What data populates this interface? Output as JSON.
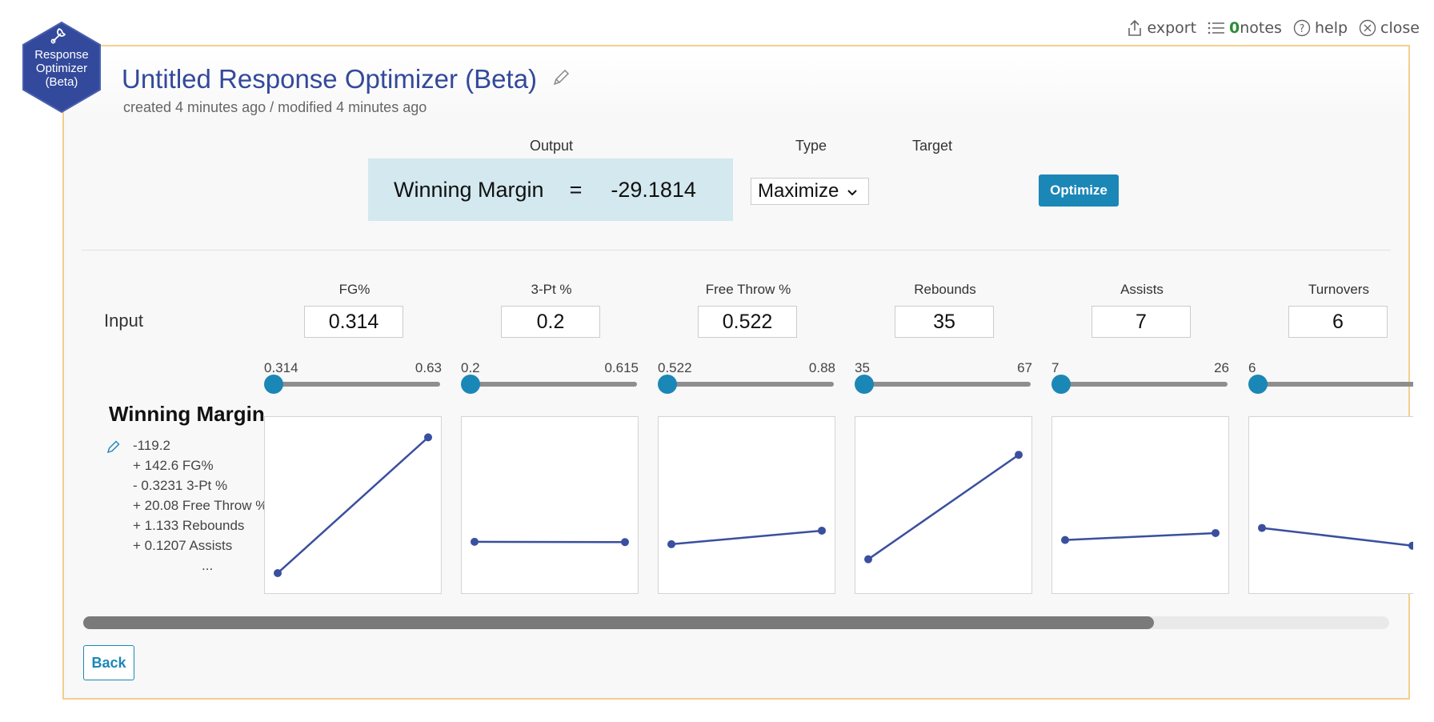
{
  "toolbar": {
    "export_label": "export",
    "notes_count": "0",
    "notes_label": "notes",
    "help_label": "help",
    "close_label": "close"
  },
  "badge": {
    "line1": "Response",
    "line2": "Optimizer",
    "line3": "(Beta)",
    "icon": "wrench-icon"
  },
  "header": {
    "title": "Untitled Response Optimizer (Beta)",
    "subtitle": "created 4 minutes ago / modified 4 minutes ago"
  },
  "columns": {
    "output_label": "Output",
    "type_label": "Type",
    "target_label": "Target"
  },
  "output": {
    "name": "Winning Margin",
    "equals": "=",
    "value": "-29.1814"
  },
  "type_select": {
    "selected": "Maximize"
  },
  "optimize_label": "Optimize",
  "input_label": "Input",
  "response": {
    "name": "Winning Margin",
    "equation": [
      "-119.2",
      "+ 142.6 FG%",
      "- 0.3231 3-Pt %",
      "+ 20.08 Free Throw %",
      "+ 1.133 Rebounds",
      "+ 0.1207 Assists",
      "..."
    ]
  },
  "factors": [
    {
      "name": "FG%",
      "value": "0.314",
      "min": "0.314",
      "max": "0.63",
      "level": 0,
      "line": [
        -39.6,
        5.5
      ]
    },
    {
      "name": "3-Pt %",
      "value": "0.2",
      "min": "0.2",
      "max": "0.615",
      "level": 0,
      "line": [
        -29.2,
        -29.3
      ]
    },
    {
      "name": "Free Throw %",
      "value": "0.522",
      "min": "0.522",
      "max": "0.88",
      "level": 0,
      "line": [
        -30.0,
        -25.5
      ]
    },
    {
      "name": "Rebounds",
      "value": "35",
      "min": "35",
      "max": "67",
      "level": 0,
      "line": [
        -35.0,
        -0.3
      ]
    },
    {
      "name": "Assists",
      "value": "7",
      "min": "7",
      "max": "26",
      "level": 0,
      "line": [
        -28.6,
        -26.3
      ]
    },
    {
      "name": "Turnovers",
      "value": "6",
      "min": "6",
      "max": "",
      "level": 0,
      "line": [
        -24.6,
        -30.5
      ]
    }
  ],
  "plot_range": [
    -42,
    8
  ],
  "scroll_fraction": 0.82,
  "back_label": "Back",
  "colors": {
    "accent": "#1b87b7",
    "title": "#33499b",
    "line": "#3a4f9e",
    "output_bg": "#d3e8ef",
    "panel_border": "#f3cf8e"
  }
}
